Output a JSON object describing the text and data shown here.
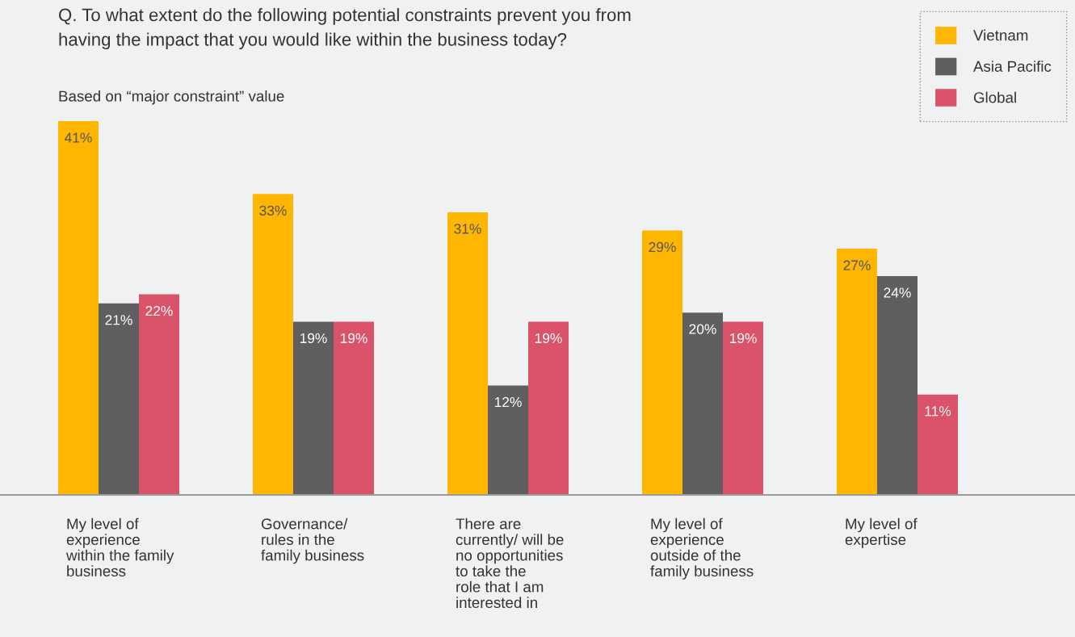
{
  "chart_data": {
    "type": "bar",
    "title": "Q. To what extent do the following potential constraints prevent you from\nhaving the impact that you would like within the business today?",
    "subtitle": "Based on “major constraint” value",
    "categories": [
      "My level of\nexperience\nwithin the family\nbusiness",
      "Governance/\nrules in the\nfamily business",
      "There are\ncurrently/ will be\nno opportunities\nto take the\nrole that I am\ninterested in",
      "My level of\nexperience\noutside of the\nfamily business",
      "My level of\nexpertise"
    ],
    "series": [
      {
        "name": "Vietnam",
        "color": "#ffb600",
        "values": [
          41,
          33,
          31,
          29,
          27
        ],
        "value_labels": [
          "41%",
          "33%",
          "31%",
          "29%",
          "27%"
        ]
      },
      {
        "name": "Asia Pacific",
        "color": "#5f5f5f",
        "values": [
          21,
          19,
          12,
          20,
          24
        ],
        "value_labels": [
          "21%",
          "19%",
          "12%",
          "20%",
          "24%"
        ]
      },
      {
        "name": "Global",
        "color": "#db536a",
        "values": [
          22,
          19,
          19,
          19,
          11
        ],
        "value_labels": [
          "22%",
          "19%",
          "19%",
          "19%",
          "11%"
        ]
      }
    ],
    "legend": "top right"
  }
}
